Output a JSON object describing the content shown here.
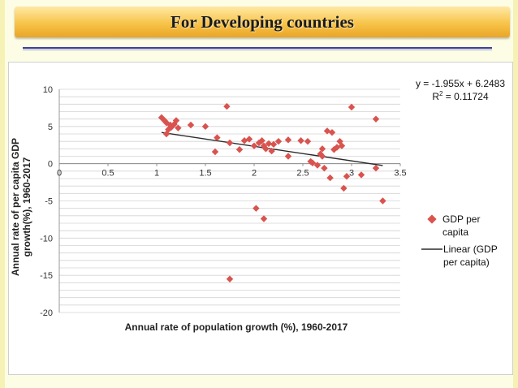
{
  "slide": {
    "title": "For Developing countries"
  },
  "chart_data": {
    "type": "scatter",
    "xlabel": "Annual rate of population growth (%), 1960-2017",
    "ylabel_lines": [
      "Annual rate of per capita GDP",
      "growth(%), 1960-2017"
    ],
    "xlim": [
      0,
      3.5
    ],
    "ylim": [
      -20,
      10
    ],
    "x_ticks": [
      0,
      0.5,
      1,
      1.5,
      2,
      2.5,
      3,
      3.5
    ],
    "x_tick_labels": [
      "0",
      "0.5",
      "1",
      "1.5",
      "2",
      "2.5",
      "3",
      "3.5"
    ],
    "y_ticks": [
      10,
      5,
      0,
      -5,
      -10,
      -15,
      -20
    ],
    "y_tick_labels": [
      "10",
      "5",
      "0",
      "-5",
      "-10",
      "-15",
      "-20"
    ],
    "grid": true,
    "legend_position": "right",
    "equation": "y = -1.955x + 6.2483",
    "r_squared_prefix": "R",
    "r_squared_exponent": "2",
    "r_squared_value": " = 0.11724",
    "series": [
      {
        "name": "GDP per capita",
        "legend_lines": [
          "GDP per",
          "capita"
        ],
        "marker": "diamond",
        "color": "#d9534f",
        "points": [
          [
            1.05,
            6.2
          ],
          [
            1.08,
            5.8
          ],
          [
            1.1,
            5.5
          ],
          [
            1.1,
            4.0
          ],
          [
            1.12,
            4.6
          ],
          [
            1.14,
            5.2
          ],
          [
            1.15,
            4.9
          ],
          [
            1.18,
            5.3
          ],
          [
            1.2,
            5.8
          ],
          [
            1.22,
            4.8
          ],
          [
            1.35,
            5.2
          ],
          [
            1.5,
            5.0
          ],
          [
            1.6,
            1.6
          ],
          [
            1.62,
            3.5
          ],
          [
            1.72,
            7.7
          ],
          [
            1.75,
            2.8
          ],
          [
            1.75,
            -15.5
          ],
          [
            1.85,
            1.9
          ],
          [
            1.9,
            3.1
          ],
          [
            1.95,
            3.3
          ],
          [
            2.0,
            2.4
          ],
          [
            2.02,
            -6.0
          ],
          [
            2.05,
            2.8
          ],
          [
            2.08,
            3.1
          ],
          [
            2.1,
            2.4
          ],
          [
            2.1,
            -7.4
          ],
          [
            2.12,
            2.0
          ],
          [
            2.15,
            2.7
          ],
          [
            2.18,
            1.7
          ],
          [
            2.2,
            2.6
          ],
          [
            2.25,
            3.0
          ],
          [
            2.35,
            3.2
          ],
          [
            2.35,
            1.0
          ],
          [
            2.48,
            3.1
          ],
          [
            2.55,
            3.0
          ],
          [
            2.58,
            0.3
          ],
          [
            2.6,
            0.1
          ],
          [
            2.65,
            -0.2
          ],
          [
            2.68,
            1.3
          ],
          [
            2.7,
            2.0
          ],
          [
            2.7,
            1.0
          ],
          [
            2.72,
            -0.6
          ],
          [
            2.75,
            4.4
          ],
          [
            2.78,
            -1.9
          ],
          [
            2.8,
            4.2
          ],
          [
            2.82,
            1.9
          ],
          [
            2.85,
            2.2
          ],
          [
            2.88,
            3.0
          ],
          [
            2.9,
            2.4
          ],
          [
            2.92,
            -3.3
          ],
          [
            2.95,
            -1.7
          ],
          [
            3.0,
            7.6
          ],
          [
            3.1,
            -1.5
          ],
          [
            3.25,
            6.0
          ],
          [
            3.25,
            -0.6
          ],
          [
            3.32,
            -5.0
          ]
        ]
      },
      {
        "name": "Linear (GDP per capita)",
        "legend_lines": [
          "Linear (GDP",
          "per capita)"
        ],
        "marker": "line",
        "color": "#2b2b2b",
        "slope": -1.955,
        "intercept": 6.2483,
        "x_range": [
          1.05,
          3.32
        ]
      }
    ]
  }
}
